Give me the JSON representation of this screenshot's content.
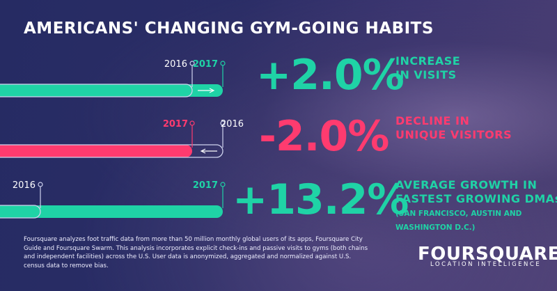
{
  "title": "AMERICANS' CHANGING GYM-GOING HABITS",
  "colors": {
    "teal": "#1fd3a6",
    "pink": "#ff3b6f",
    "outline": "#cfd3ee"
  },
  "chart_data": {
    "type": "bar",
    "title": "AMERICANS' CHANGING GYM-GOING HABITS",
    "series": [
      {
        "metric_value": "+2.0%",
        "label_line1": "INCREASE",
        "label_line2": "IN VISITS",
        "detail_line1": "",
        "detail_line2": "",
        "change_pct": 2.0,
        "start_label": "2016",
        "end_label": "2017",
        "highlight_year": "2017",
        "direction": "increase",
        "color": "#1fd3a6"
      },
      {
        "metric_value": "-2.0%",
        "label_line1": "DECLINE IN",
        "label_line2": "UNIQUE VISITORS",
        "detail_line1": "",
        "detail_line2": "",
        "change_pct": -2.0,
        "start_label": "2016",
        "end_label": "2017",
        "highlight_year": "2017",
        "direction": "decrease",
        "color": "#ff3b6f"
      },
      {
        "metric_value": "+13.2%",
        "label_line1": "AVERAGE GROWTH IN",
        "label_line2": "FASTEST GROWING DMAs",
        "detail_line1": "(SAN FRANCISCO, AUSTIN AND",
        "detail_line2": "WASHINGTON D.C.)",
        "change_pct": 13.2,
        "start_label": "2016",
        "end_label": "2017",
        "highlight_year": "2017",
        "direction": "increase",
        "color": "#1fd3a6"
      }
    ]
  },
  "footnote": "Foursquare analyzes foot traffic data from more than 50 million monthly global users of its apps, Foursquare City Guide and Foursquare Swarm. This analysis incorporates explicit check-ins and passive visits to gyms (both chains and independent facilities) across the U.S. User data is anonymized, aggregated and normalized against U.S. census data to remove bias.",
  "brand": {
    "name": "FOURSQUARE",
    "tagline": "LOCATION INTELLIGENCE"
  }
}
